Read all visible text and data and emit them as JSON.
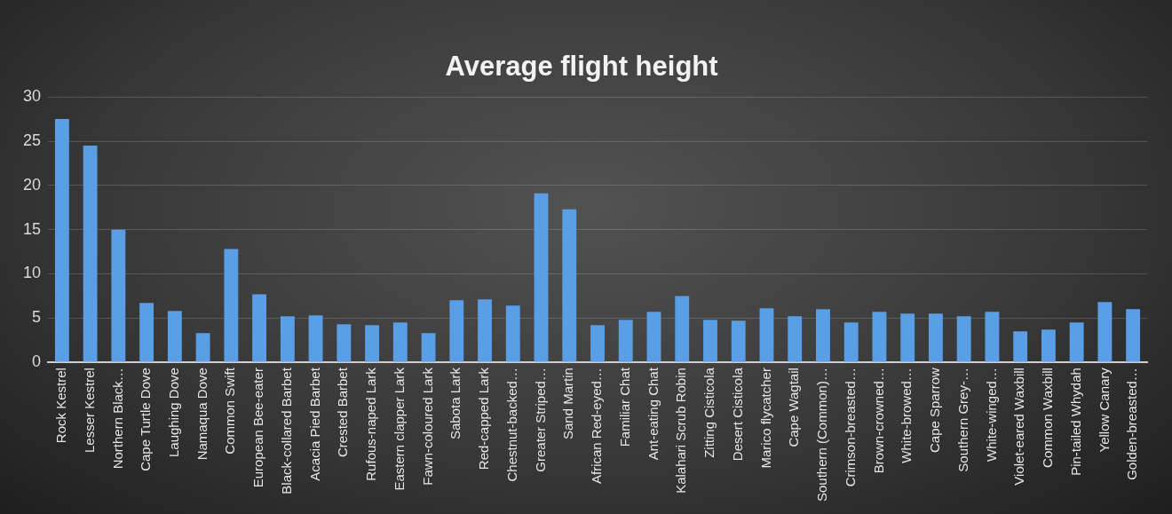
{
  "chart_data": {
    "type": "bar",
    "title": "Average flight height",
    "categories": [
      "Rock Kestrel",
      "Lesser Kestrel",
      "Northern Black…",
      "Cape Turtle Dove",
      "Laughing Dove",
      "Namaqua Dove",
      "Common Swift",
      "European Bee-eater",
      "Black-collared Barbet",
      "Acacia Pied Barbet",
      "Crested Barbet",
      "Rufous-naped Lark",
      "Eastern clapper Lark",
      "Fawn-coloured Lark",
      "Sabota Lark",
      "Red-capped Lark",
      "Chestnut-backed…",
      "Greater Striped…",
      "Sand Martin",
      "African Red-eyed…",
      "Familiar Chat",
      "Ant-eating Chat",
      "Kalahari Scrub Robin",
      "Zitting Cisticola",
      "Desert Cisticola",
      "Marico flycatcher",
      "Cape Wagtail",
      "Southern (Common)…",
      "Crimson-breasted…",
      "Brown-crowned…",
      "White-browed…",
      "Cape Sparrow",
      "Southern Grey-…",
      "White-winged…",
      "Violet-eared Waxbill",
      "Common Waxbill",
      "Pin-tailed Whydah",
      "Yellow Canary",
      "Golden-breasted…"
    ],
    "values": [
      27.5,
      24.5,
      15.0,
      6.7,
      5.8,
      3.3,
      12.8,
      7.7,
      5.2,
      5.3,
      4.3,
      4.2,
      4.5,
      3.3,
      7.0,
      7.1,
      6.4,
      19.1,
      17.3,
      4.2,
      4.8,
      5.7,
      7.5,
      4.8,
      4.7,
      6.1,
      5.2,
      6.0,
      4.5,
      5.7,
      5.5,
      5.5,
      5.2,
      5.7,
      3.5,
      3.7,
      4.5,
      6.8,
      6.0
    ],
    "color": "#5a9ee6",
    "ylim": [
      0,
      30
    ],
    "yticks": [
      0,
      5,
      10,
      15,
      20,
      25,
      30
    ],
    "grid": "y",
    "legend": false
  }
}
